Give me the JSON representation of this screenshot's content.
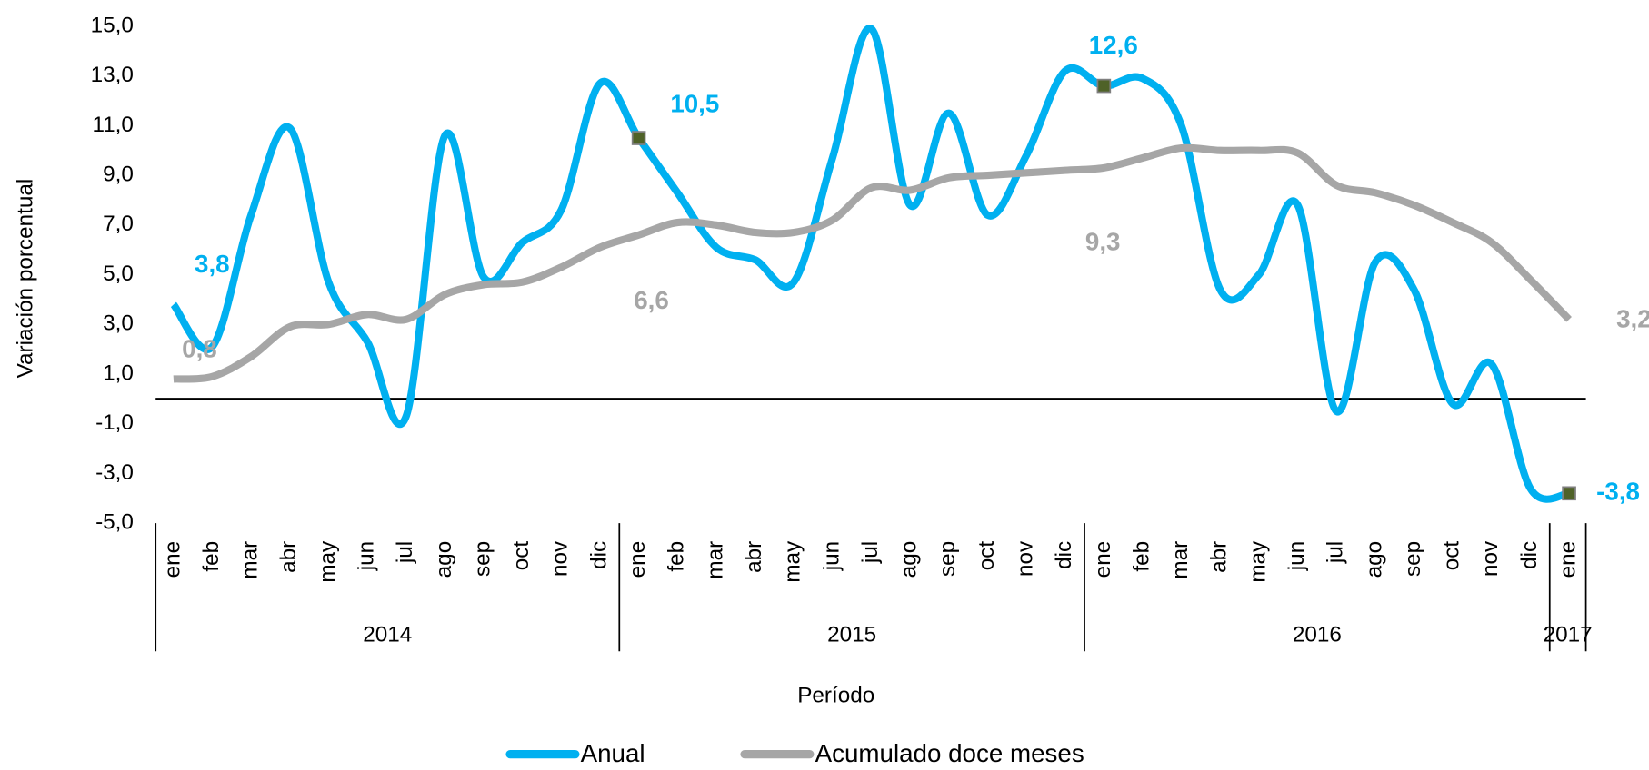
{
  "chart_data": {
    "type": "line",
    "y_label": "Variación porcentual",
    "x_label": "Período",
    "categories": [
      "ene",
      "feb",
      "mar",
      "abr",
      "may",
      "jun",
      "jul",
      "ago",
      "sep",
      "oct",
      "nov",
      "dic",
      "ene",
      "feb",
      "mar",
      "abr",
      "may",
      "jun",
      "jul",
      "ago",
      "sep",
      "oct",
      "nov",
      "dic",
      "ene",
      "feb",
      "mar",
      "abr",
      "may",
      "jun",
      "jul",
      "ago",
      "sep",
      "oct",
      "nov",
      "dic",
      "ene"
    ],
    "groups": [
      {
        "label": "2014",
        "count": 12
      },
      {
        "label": "2015",
        "count": 12
      },
      {
        "label": "2016",
        "count": 12
      },
      {
        "label": "2017",
        "count": 1
      }
    ],
    "series": [
      {
        "name": "Anual",
        "color": "#00b0f0",
        "values": [
          3.8,
          2.1,
          7.4,
          10.9,
          4.7,
          2.3,
          -0.7,
          10.6,
          4.9,
          6.3,
          7.6,
          12.7,
          10.5,
          8.3,
          6.1,
          5.6,
          4.7,
          9.7,
          14.9,
          7.8,
          11.5,
          7.4,
          9.8,
          13.2,
          12.6,
          12.9,
          11.0,
          4.4,
          5.0,
          7.8,
          -0.5,
          5.5,
          4.4,
          -0.2,
          1.4,
          -3.6,
          -3.8
        ],
        "value_labels": [
          "3,8",
          null,
          null,
          null,
          null,
          null,
          null,
          null,
          null,
          null,
          null,
          null,
          "10,5",
          null,
          null,
          null,
          null,
          null,
          null,
          null,
          null,
          null,
          null,
          null,
          "12,6",
          null,
          null,
          null,
          null,
          null,
          null,
          null,
          null,
          null,
          null,
          null,
          "-3,8"
        ],
        "markers": [
          12,
          24,
          36
        ],
        "marker_color": "#4f6228"
      },
      {
        "name": "Acumulado doce meses",
        "color": "#a6a6a6",
        "values": [
          0.8,
          0.9,
          1.7,
          2.9,
          3.0,
          3.4,
          3.2,
          4.2,
          4.6,
          4.7,
          5.3,
          6.1,
          6.6,
          7.1,
          7.0,
          6.7,
          6.7,
          7.2,
          8.5,
          8.4,
          8.9,
          9.0,
          9.1,
          9.2,
          9.3,
          9.7,
          10.1,
          10.0,
          10.0,
          9.9,
          8.6,
          8.3,
          7.8,
          7.1,
          6.3,
          4.8,
          3.2
        ],
        "value_labels": [
          "0,8",
          null,
          null,
          null,
          null,
          null,
          null,
          null,
          null,
          null,
          null,
          null,
          "6,6",
          null,
          null,
          null,
          null,
          null,
          null,
          null,
          null,
          null,
          null,
          null,
          "9,3",
          null,
          null,
          null,
          null,
          null,
          null,
          null,
          null,
          null,
          null,
          null,
          "3,2"
        ]
      }
    ],
    "ylim": [
      -5,
      15
    ],
    "yticks": [
      {
        "value": -5,
        "label": "-5,0"
      },
      {
        "value": -3,
        "label": "-3,0"
      },
      {
        "value": -1,
        "label": "-1,0"
      },
      {
        "value": 1,
        "label": "1,0"
      },
      {
        "value": 3,
        "label": "3,0"
      },
      {
        "value": 5,
        "label": "5,0"
      },
      {
        "value": 7,
        "label": "7,0"
      },
      {
        "value": 9,
        "label": "9,0"
      },
      {
        "value": 11,
        "label": "11,0"
      },
      {
        "value": 13,
        "label": "13,0"
      },
      {
        "value": 15,
        "label": "15,0"
      }
    ],
    "grid": false,
    "legend": "bottom"
  }
}
